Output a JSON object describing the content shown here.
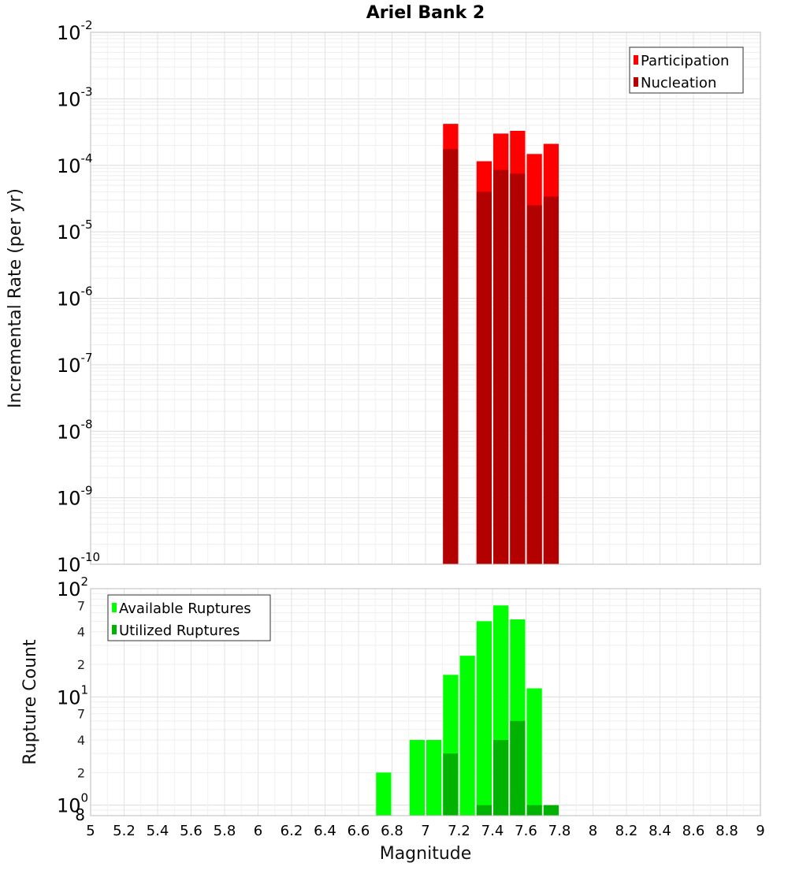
{
  "chart_data": {
    "title": "Ariel Bank 2",
    "xlabel": "Magnitude",
    "x_ticks": [
      "5",
      "5.2",
      "5.4",
      "5.6",
      "5.8",
      "6",
      "6.2",
      "6.4",
      "6.6",
      "6.8",
      "7",
      "7.2",
      "7.4",
      "7.6",
      "7.8",
      "8",
      "8.2",
      "8.4",
      "8.6",
      "8.8",
      "9"
    ],
    "xlim": [
      5,
      9
    ],
    "bin_width": 0.1,
    "charts": [
      {
        "type": "bar",
        "ylabel": "Incremental Rate (per yr)",
        "yscale": "log",
        "ylim": [
          1e-10,
          0.01
        ],
        "y_ticks": [
          {
            "base": "10",
            "exp": "-10"
          },
          {
            "base": "10",
            "exp": "-9"
          },
          {
            "base": "10",
            "exp": "-8"
          },
          {
            "base": "10",
            "exp": "-7"
          },
          {
            "base": "10",
            "exp": "-6"
          },
          {
            "base": "10",
            "exp": "-5"
          },
          {
            "base": "10",
            "exp": "-4"
          },
          {
            "base": "10",
            "exp": "-3"
          },
          {
            "base": "10",
            "exp": "-2"
          }
        ],
        "legend_position": "top-right",
        "series": [
          {
            "name": "Participation",
            "color": "#ff0000",
            "x": [
              7.15,
              7.35,
              7.45,
              7.55,
              7.65,
              7.75
            ],
            "values": [
              0.00042,
              0.000115,
              0.0003,
              0.00033,
              0.000148,
              0.00021
            ]
          },
          {
            "name": "Nucleation",
            "color": "#b30000",
            "x": [
              7.15,
              7.35,
              7.45,
              7.55,
              7.65,
              7.75
            ],
            "values": [
              0.000175,
              4e-05,
              8.5e-05,
              7.5e-05,
              2.5e-05,
              3.4e-05
            ]
          }
        ]
      },
      {
        "type": "bar",
        "ylabel": "Rupture Count",
        "yscale": "log",
        "ylim": [
          0.8,
          100
        ],
        "y_ticks": [
          {
            "base": "10",
            "exp": "0"
          },
          {
            "base": "10",
            "exp": "1"
          },
          {
            "base": "10",
            "exp": "2"
          }
        ],
        "y_minor_labels": [
          "8",
          "2",
          "4",
          "7",
          "2",
          "4",
          "7"
        ],
        "legend_position": "top-left",
        "series": [
          {
            "name": "Available Ruptures",
            "color": "#00ff00",
            "x": [
              6.75,
              6.95,
              7.05,
              7.15,
              7.25,
              7.35,
              7.45,
              7.55,
              7.65
            ],
            "values": [
              2,
              4,
              4,
              16,
              24,
              50,
              70,
              52,
              12
            ]
          },
          {
            "name": "Utilized Ruptures",
            "color": "#00b300",
            "x": [
              7.15,
              7.35,
              7.45,
              7.55,
              7.65,
              7.75
            ],
            "values": [
              3,
              1,
              4,
              6,
              1,
              1
            ]
          }
        ]
      }
    ]
  }
}
